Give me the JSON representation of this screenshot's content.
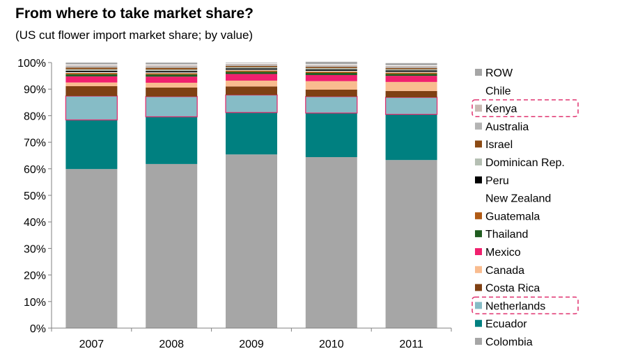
{
  "chart_data": {
    "type": "bar",
    "stacked": true,
    "percent": true,
    "title": "From where to take market share?",
    "subtitle": "(US cut flower import market share; by value)",
    "xlabel": "",
    "ylabel": "",
    "ylim": [
      0,
      100
    ],
    "yticks": [
      "0%",
      "10%",
      "20%",
      "30%",
      "40%",
      "50%",
      "60%",
      "70%",
      "80%",
      "90%",
      "100%"
    ],
    "categories": [
      "2007",
      "2008",
      "2009",
      "2010",
      "2011"
    ],
    "series": [
      {
        "name": "Colombia",
        "color": "#a6a6a6",
        "values": [
          59.9,
          61.8,
          65.4,
          64.4,
          63.3
        ]
      },
      {
        "name": "Ecuador",
        "color": "#008080",
        "values": [
          18.5,
          17.8,
          15.8,
          16.6,
          17.2
        ]
      },
      {
        "name": "Netherlands",
        "color": "#86bcc6",
        "values": [
          9.0,
          7.6,
          6.6,
          6.2,
          6.4
        ]
      },
      {
        "name": "Costa Rica",
        "color": "#7f4013",
        "values": [
          3.7,
          3.4,
          3.2,
          2.6,
          2.4
        ]
      },
      {
        "name": "Canada",
        "color": "#f9bc8f",
        "values": [
          1.4,
          1.8,
          2.2,
          3.2,
          3.4
        ]
      },
      {
        "name": "Mexico",
        "color": "#f0206e",
        "values": [
          2.3,
          2.3,
          2.5,
          2.3,
          2.3
        ]
      },
      {
        "name": "Thailand",
        "color": "#1f5c1f",
        "values": [
          0.8,
          0.8,
          0.8,
          0.8,
          0.7
        ]
      },
      {
        "name": "Guatemala",
        "color": "#b05a14",
        "values": [
          0.5,
          0.5,
          0.5,
          0.5,
          0.5
        ]
      },
      {
        "name": "New Zealand",
        "color": "#ffffff",
        "values": [
          0.3,
          0.3,
          0.3,
          0.3,
          0.3
        ]
      },
      {
        "name": "Peru",
        "color": "#000000",
        "values": [
          0.5,
          0.5,
          0.5,
          0.5,
          0.5
        ]
      },
      {
        "name": "Dominican Rep.",
        "color": "#b5bfb3",
        "values": [
          0.6,
          0.6,
          0.5,
          0.5,
          0.5
        ]
      },
      {
        "name": "Israel",
        "color": "#8b4a14",
        "values": [
          0.6,
          0.6,
          0.4,
          0.4,
          0.4
        ]
      },
      {
        "name": "Australia",
        "color": "#b3b3b3",
        "values": [
          0.5,
          0.5,
          0.4,
          0.4,
          0.4
        ]
      },
      {
        "name": "Kenya",
        "color": "#c9b9b3",
        "values": [
          0.4,
          0.5,
          0.4,
          0.4,
          0.4
        ]
      },
      {
        "name": "Chile",
        "color": "#ffffff",
        "values": [
          0.3,
          0.3,
          0.3,
          0.3,
          0.3
        ]
      },
      {
        "name": "ROW",
        "color": "#a6a6a6",
        "values": [
          0.7,
          0.7,
          0.2,
          0.9,
          0.8
        ]
      }
    ],
    "highlighted_series": [
      "Netherlands",
      "Kenya"
    ],
    "highlight_color": "#e0306e",
    "legend_position": "right",
    "grid": false
  }
}
